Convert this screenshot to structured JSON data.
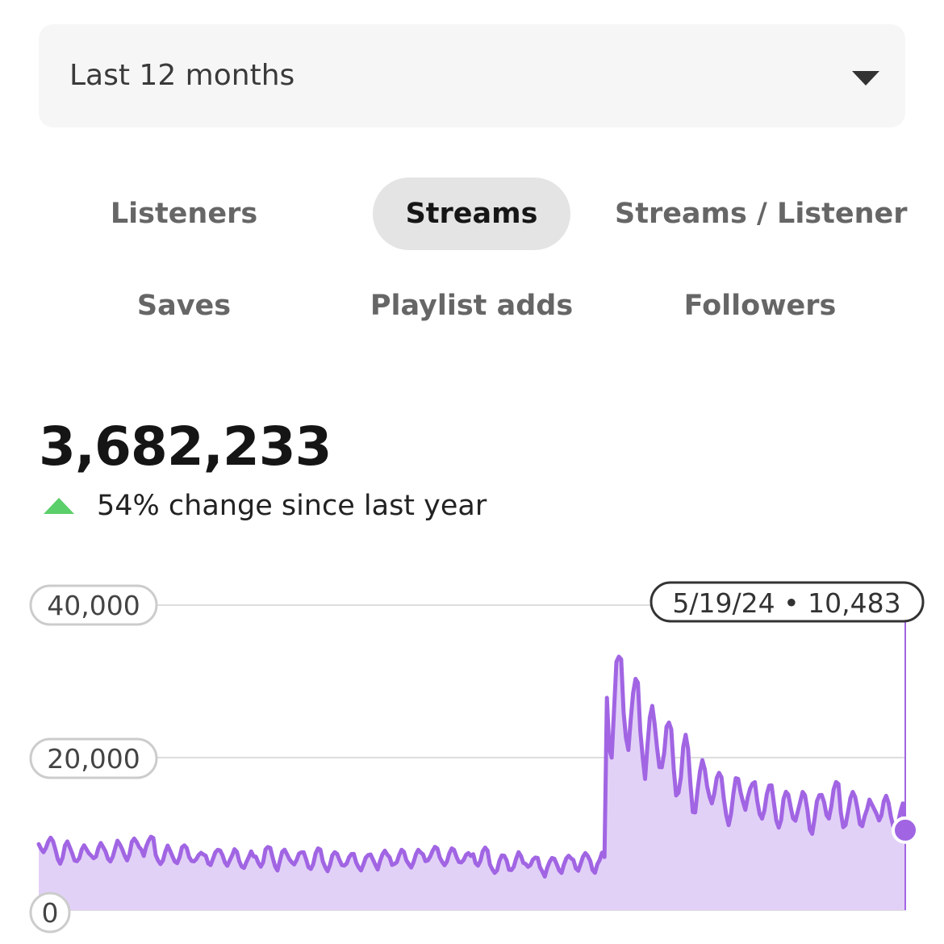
{
  "period_selector": {
    "value": "Last 12 months",
    "icon": "caret-down-icon"
  },
  "metric_tabs": [
    {
      "label": "Listeners",
      "active": false
    },
    {
      "label": "Streams",
      "active": true
    },
    {
      "label": "Streams / Listener",
      "active": false
    },
    {
      "label": "Saves",
      "active": false
    },
    {
      "label": "Playlist adds",
      "active": false
    },
    {
      "label": "Followers",
      "active": false
    }
  ],
  "summary": {
    "total": "3,682,233",
    "change_text": "54% change since last year",
    "change_direction": "up",
    "change_color": "#5bcf6a"
  },
  "chart_data": {
    "type": "area",
    "x_start": "2023-05-20",
    "x_end": "2024-05-19",
    "y_ticks": [
      {
        "value": 0,
        "label": "0"
      },
      {
        "value": 20000,
        "label": "20,000"
      },
      {
        "value": 40000,
        "label": "40,000"
      }
    ],
    "ylim": [
      0,
      40000
    ],
    "grid": true,
    "line_color": "#a165e3",
    "fill_color": "#e2d1f7",
    "tooltip": {
      "date": "5/19/24",
      "value": "10,483"
    },
    "weekly_low": [
      7600,
      6000,
      6200,
      6400,
      6100,
      6500,
      7100,
      5800,
      5900,
      6200,
      5900,
      5600,
      5300,
      5600,
      5200,
      5800,
      5400,
      5100,
      5600,
      5200,
      5300,
      5700,
      5500,
      6200,
      5500,
      6000,
      5600,
      4600,
      5000,
      5600,
      4400,
      4800,
      5100,
      4700,
      20000,
      21000,
      17000,
      18000,
      14000,
      12000,
      14000,
      11000,
      13000,
      12000,
      10500,
      11500,
      10000,
      12000,
      10500,
      11000,
      11500,
      10600
    ],
    "weekly_high": [
      9500,
      9000,
      8500,
      8800,
      9100,
      9500,
      9800,
      8500,
      8600,
      7600,
      7900,
      8100,
      7700,
      8300,
      8100,
      7700,
      8100,
      7900,
      7600,
      7500,
      7800,
      8100,
      7900,
      8300,
      8100,
      7500,
      8200,
      7200,
      7600,
      7000,
      6900,
      7400,
      7800,
      7600,
      35000,
      31000,
      27000,
      25000,
      23000,
      20000,
      18000,
      17500,
      17000,
      16500,
      16000,
      15500,
      15800,
      16800,
      15500,
      14500,
      15000,
      14000
    ]
  }
}
